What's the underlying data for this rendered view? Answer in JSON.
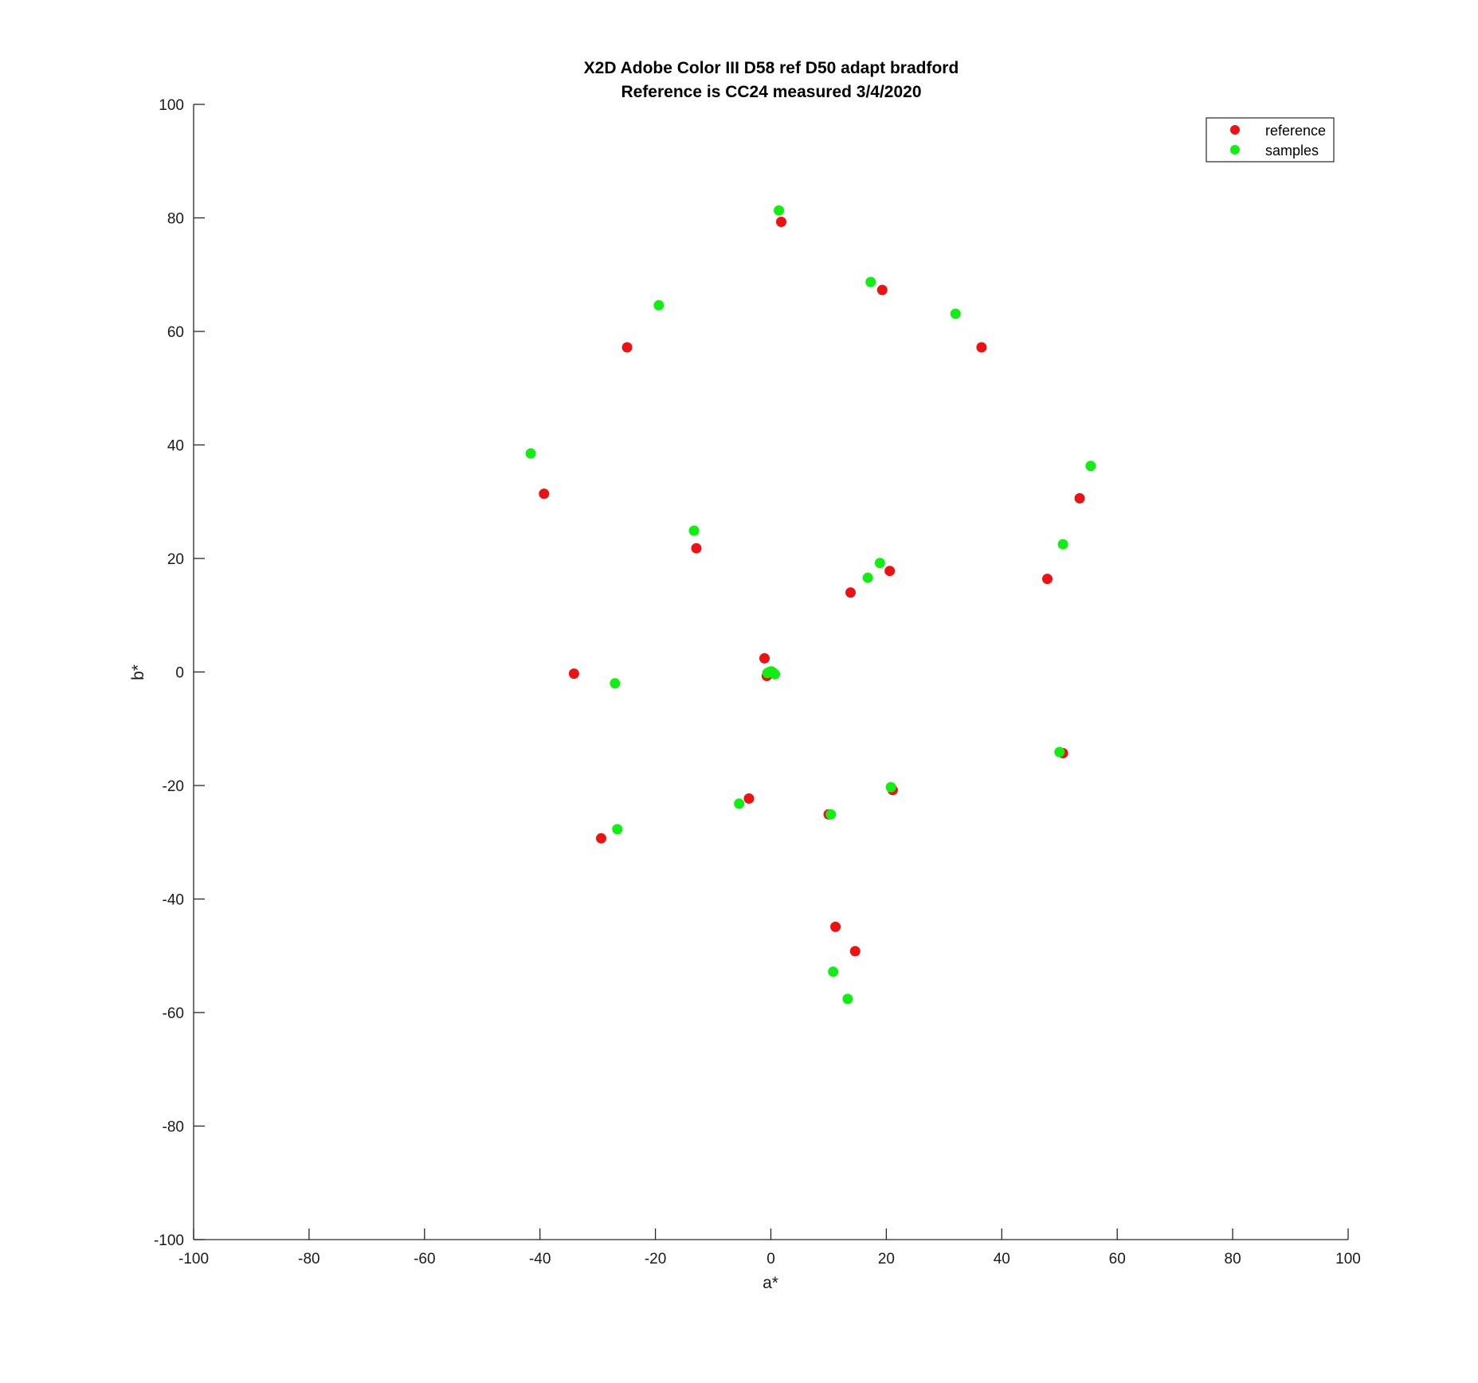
{
  "chart_data": {
    "type": "scatter",
    "title": "X2D Adobe Color III D58 ref D50 adapt bradford",
    "subtitle": "Reference is CC24 measured 3/4/2020",
    "xlabel": "a*",
    "ylabel": "b*",
    "xlim": [
      -100,
      100
    ],
    "ylim": [
      -100,
      100
    ],
    "xticks": [
      "-100",
      "-80",
      "-60",
      "-40",
      "-20",
      "0",
      "20",
      "40",
      "60",
      "80",
      "100"
    ],
    "yticks": [
      "100",
      "80",
      "60",
      "40",
      "20",
      "0",
      "-20",
      "-40",
      "-60",
      "-80",
      "-100"
    ],
    "grid": false,
    "legend_position": "top-right",
    "series": [
      {
        "name": "reference",
        "color": "#ee1111",
        "points": [
          [
            1.8,
            79.3
          ],
          [
            19.3,
            67.3
          ],
          [
            -24.9,
            57.2
          ],
          [
            36.5,
            57.2
          ],
          [
            -39.3,
            31.4
          ],
          [
            53.5,
            30.6
          ],
          [
            -12.9,
            21.8
          ],
          [
            20.6,
            17.8
          ],
          [
            47.9,
            16.4
          ],
          [
            13.8,
            14.0
          ],
          [
            -1.1,
            2.4
          ],
          [
            -0.7,
            -0.7
          ],
          [
            -0.3,
            -0.3
          ],
          [
            -34.1,
            -0.3
          ],
          [
            50.6,
            -14.3
          ],
          [
            21.1,
            -20.8
          ],
          [
            -3.8,
            -22.3
          ],
          [
            10.0,
            -25.1
          ],
          [
            -29.4,
            -29.3
          ],
          [
            11.2,
            -44.9
          ],
          [
            14.6,
            -49.2
          ]
        ]
      },
      {
        "name": "samples",
        "color": "#11ee11",
        "points": [
          [
            1.4,
            81.3
          ],
          [
            17.3,
            68.7
          ],
          [
            -19.4,
            64.6
          ],
          [
            32.0,
            63.1
          ],
          [
            -41.6,
            38.5
          ],
          [
            55.4,
            36.3
          ],
          [
            -13.3,
            24.9
          ],
          [
            18.9,
            19.2
          ],
          [
            50.6,
            22.5
          ],
          [
            16.8,
            16.6
          ],
          [
            -0.3,
            0.0
          ],
          [
            0.1,
            0.1
          ],
          [
            0.4,
            -0.1
          ],
          [
            0.7,
            -0.4
          ],
          [
            -0.6,
            -0.2
          ],
          [
            -27.0,
            -2.0
          ],
          [
            50.0,
            -14.1
          ],
          [
            20.8,
            -20.3
          ],
          [
            -5.5,
            -23.2
          ],
          [
            10.4,
            -25.1
          ],
          [
            -26.6,
            -27.7
          ],
          [
            10.8,
            -52.8
          ],
          [
            13.3,
            -57.6
          ]
        ]
      }
    ]
  }
}
